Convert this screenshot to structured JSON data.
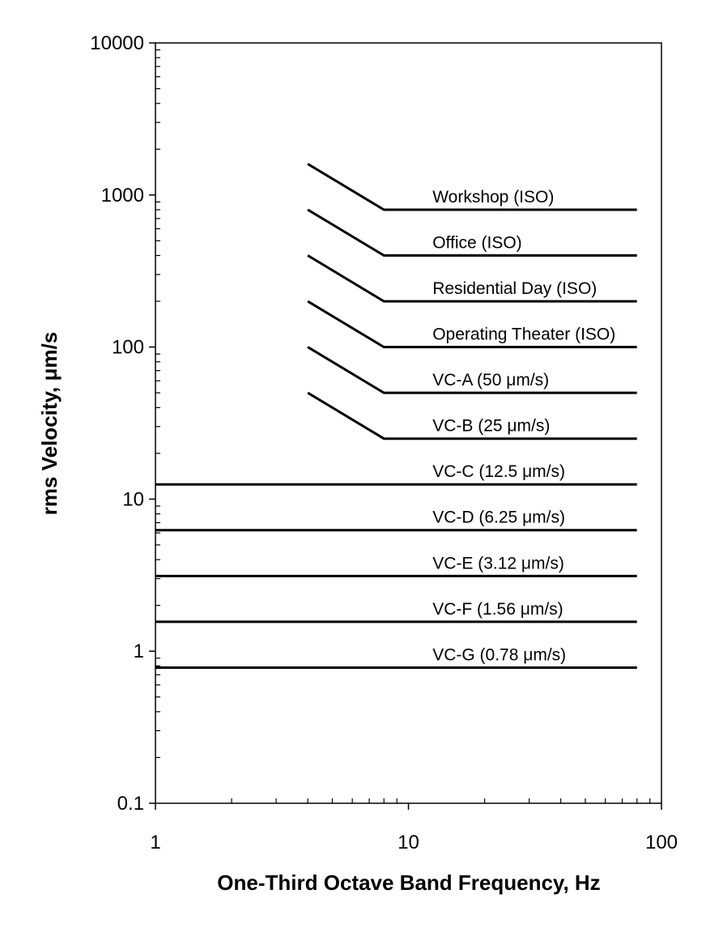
{
  "chart_data": {
    "type": "line",
    "title": "",
    "xlabel": "One-Third Octave Band Frequency, Hz",
    "ylabel": "rms Velocity, μm/s",
    "xscale": "log",
    "yscale": "log",
    "xlim": [
      1,
      100
    ],
    "ylim": [
      0.1,
      10000
    ],
    "grid": false,
    "legend": "none",
    "line_color": "#000000",
    "x_tick_labels": [
      "1",
      "10",
      "100"
    ],
    "y_tick_labels": [
      "0.1",
      "1",
      "10",
      "100",
      "1000",
      "10000"
    ],
    "series": [
      {
        "name": "Workshop (ISO)",
        "x": [
          4,
          8,
          80
        ],
        "y": [
          1600,
          800,
          800
        ]
      },
      {
        "name": "Office (ISO)",
        "x": [
          4,
          8,
          80
        ],
        "y": [
          800,
          400,
          400
        ]
      },
      {
        "name": "Residential Day (ISO)",
        "x": [
          4,
          8,
          80
        ],
        "y": [
          400,
          200,
          200
        ]
      },
      {
        "name": "Operating Theater (ISO)",
        "x": [
          4,
          8,
          80
        ],
        "y": [
          200,
          100,
          100
        ]
      },
      {
        "name": "VC-A (50 μm/s)",
        "x": [
          4,
          8,
          80
        ],
        "y": [
          100,
          50,
          50
        ]
      },
      {
        "name": "VC-B (25 μm/s)",
        "x": [
          4,
          8,
          80
        ],
        "y": [
          50,
          25,
          25
        ]
      },
      {
        "name": "VC-C (12.5 μm/s)",
        "x": [
          1,
          80
        ],
        "y": [
          12.5,
          12.5
        ]
      },
      {
        "name": "VC-D (6.25 μm/s)",
        "x": [
          1,
          80
        ],
        "y": [
          6.25,
          6.25
        ]
      },
      {
        "name": "VC-E (3.12 μm/s)",
        "x": [
          1,
          80
        ],
        "y": [
          3.12,
          3.12
        ]
      },
      {
        "name": "VC-F (1.56 μm/s)",
        "x": [
          1,
          80
        ],
        "y": [
          1.56,
          1.56
        ]
      },
      {
        "name": "VC-G (0.78 μm/s)",
        "x": [
          1,
          80
        ],
        "y": [
          0.78,
          0.78
        ]
      }
    ]
  }
}
